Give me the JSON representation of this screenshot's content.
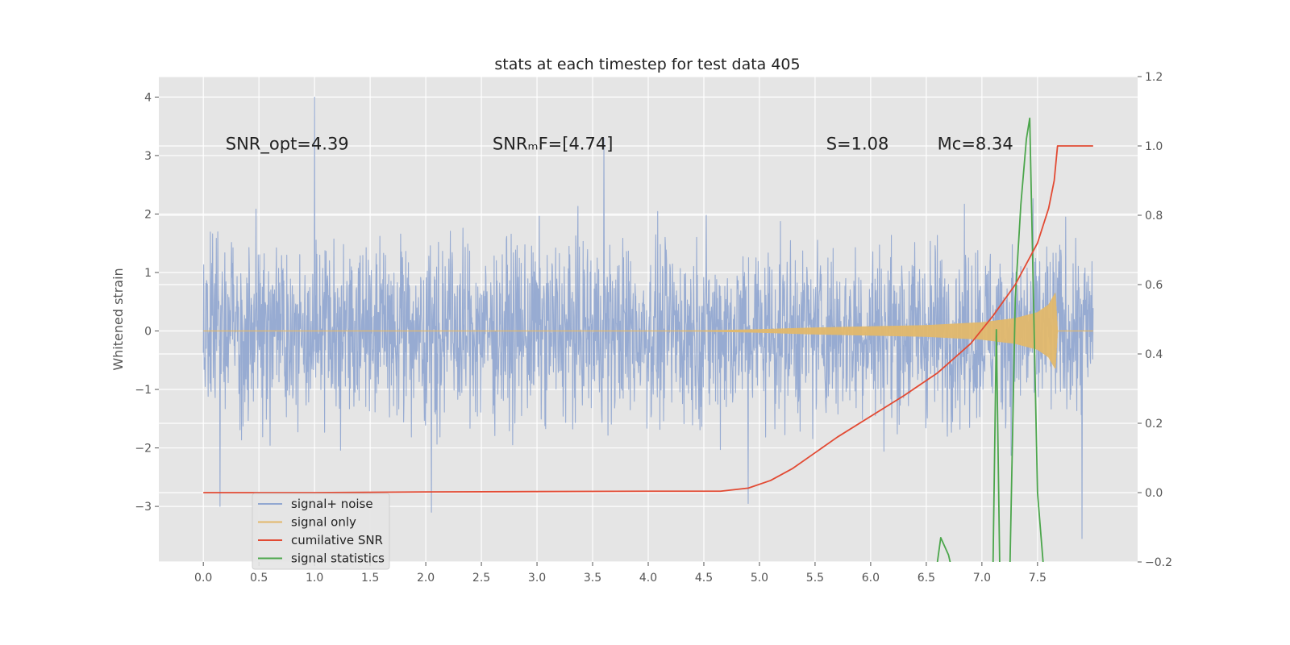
{
  "chart_data": {
    "type": "line",
    "title": "stats at each timestep for test data 405",
    "ylabel": "Whitened strain",
    "xlim": [
      -0.4,
      8.4
    ],
    "ylim": [
      -3.95,
      4.35
    ],
    "y2lim": [
      -0.2,
      1.2
    ],
    "xticks": [
      "0.0",
      "0.5",
      "1.0",
      "1.5",
      "2.0",
      "2.5",
      "3.0",
      "3.5",
      "4.0",
      "4.5",
      "5.0",
      "5.5",
      "6.0",
      "6.5",
      "7.0",
      "7.5"
    ],
    "yticks": [
      "−3",
      "−2",
      "−1",
      "0",
      "1",
      "2",
      "3",
      "4"
    ],
    "y2ticks": [
      "−0.2",
      "0.0",
      "0.2",
      "0.4",
      "0.6",
      "0.8",
      "1.0",
      "1.2"
    ],
    "grid": true,
    "legend_position": "lower-left",
    "annotations": [
      {
        "id": "snr-opt",
        "text": "SNR_opt=4.39",
        "x": 0.2,
        "y": 3.2
      },
      {
        "id": "snr-mf",
        "text": "SNRₘF=[4.74]",
        "x": 2.6,
        "y": 3.2
      },
      {
        "id": "s",
        "text": "S=1.08",
        "x": 5.6,
        "y": 3.2
      },
      {
        "id": "mc",
        "text": "Mᴄ=8.34",
        "x": 6.6,
        "y": 3.2
      }
    ],
    "series": [
      {
        "id": "noise",
        "name": "signal+ noise",
        "color": "#92a8d1",
        "axis": "left",
        "x_range": [
          0.0,
          8.0
        ],
        "envelope_abs": 2.0,
        "notable_peaks": [
          [
            1.0,
            4.0
          ],
          [
            3.6,
            3.3
          ],
          [
            2.05,
            -3.1
          ],
          [
            0.15,
            -3.0
          ],
          [
            7.9,
            -3.55
          ],
          [
            4.9,
            -2.95
          ]
        ]
      },
      {
        "id": "signal",
        "name": "signal only",
        "color": "#e2b86b",
        "axis": "left",
        "x_range": [
          0.0,
          7.68
        ],
        "envelope": [
          [
            0.0,
            0.0
          ],
          [
            4.5,
            0.01
          ],
          [
            5.0,
            0.03
          ],
          [
            5.5,
            0.06
          ],
          [
            6.0,
            0.08
          ],
          [
            6.5,
            0.1
          ],
          [
            7.0,
            0.15
          ],
          [
            7.3,
            0.22
          ],
          [
            7.5,
            0.32
          ],
          [
            7.6,
            0.45
          ],
          [
            7.66,
            0.65
          ],
          [
            7.68,
            0.0
          ]
        ]
      },
      {
        "id": "cumsnr",
        "name": "cumilative SNR",
        "color": "#e24a33",
        "axis": "right",
        "x": [
          0.0,
          1.0,
          2.0,
          3.0,
          4.0,
          4.65,
          4.9,
          5.1,
          5.3,
          5.5,
          5.7,
          6.0,
          6.3,
          6.6,
          6.9,
          7.1,
          7.3,
          7.5,
          7.6,
          7.65,
          7.68,
          8.0
        ],
        "values": [
          0.0,
          0.0,
          0.002,
          0.003,
          0.004,
          0.004,
          0.013,
          0.035,
          0.07,
          0.115,
          0.16,
          0.22,
          0.28,
          0.345,
          0.43,
          0.51,
          0.6,
          0.72,
          0.82,
          0.9,
          1.0,
          1.0
        ]
      },
      {
        "id": "stats",
        "name": "signal statistics",
        "color": "#4ca64c",
        "axis": "right",
        "x": [
          6.6,
          6.63,
          6.7,
          6.75,
          7.05,
          7.1,
          7.13,
          7.16,
          7.2,
          7.25,
          7.3,
          7.35,
          7.4,
          7.43,
          7.5,
          7.55
        ],
        "values": [
          -0.2,
          -0.13,
          -0.18,
          -0.25,
          -0.25,
          -0.21,
          0.47,
          -0.21,
          -0.25,
          -0.25,
          0.56,
          0.83,
          1.02,
          1.08,
          0.0,
          -0.2
        ]
      }
    ]
  }
}
